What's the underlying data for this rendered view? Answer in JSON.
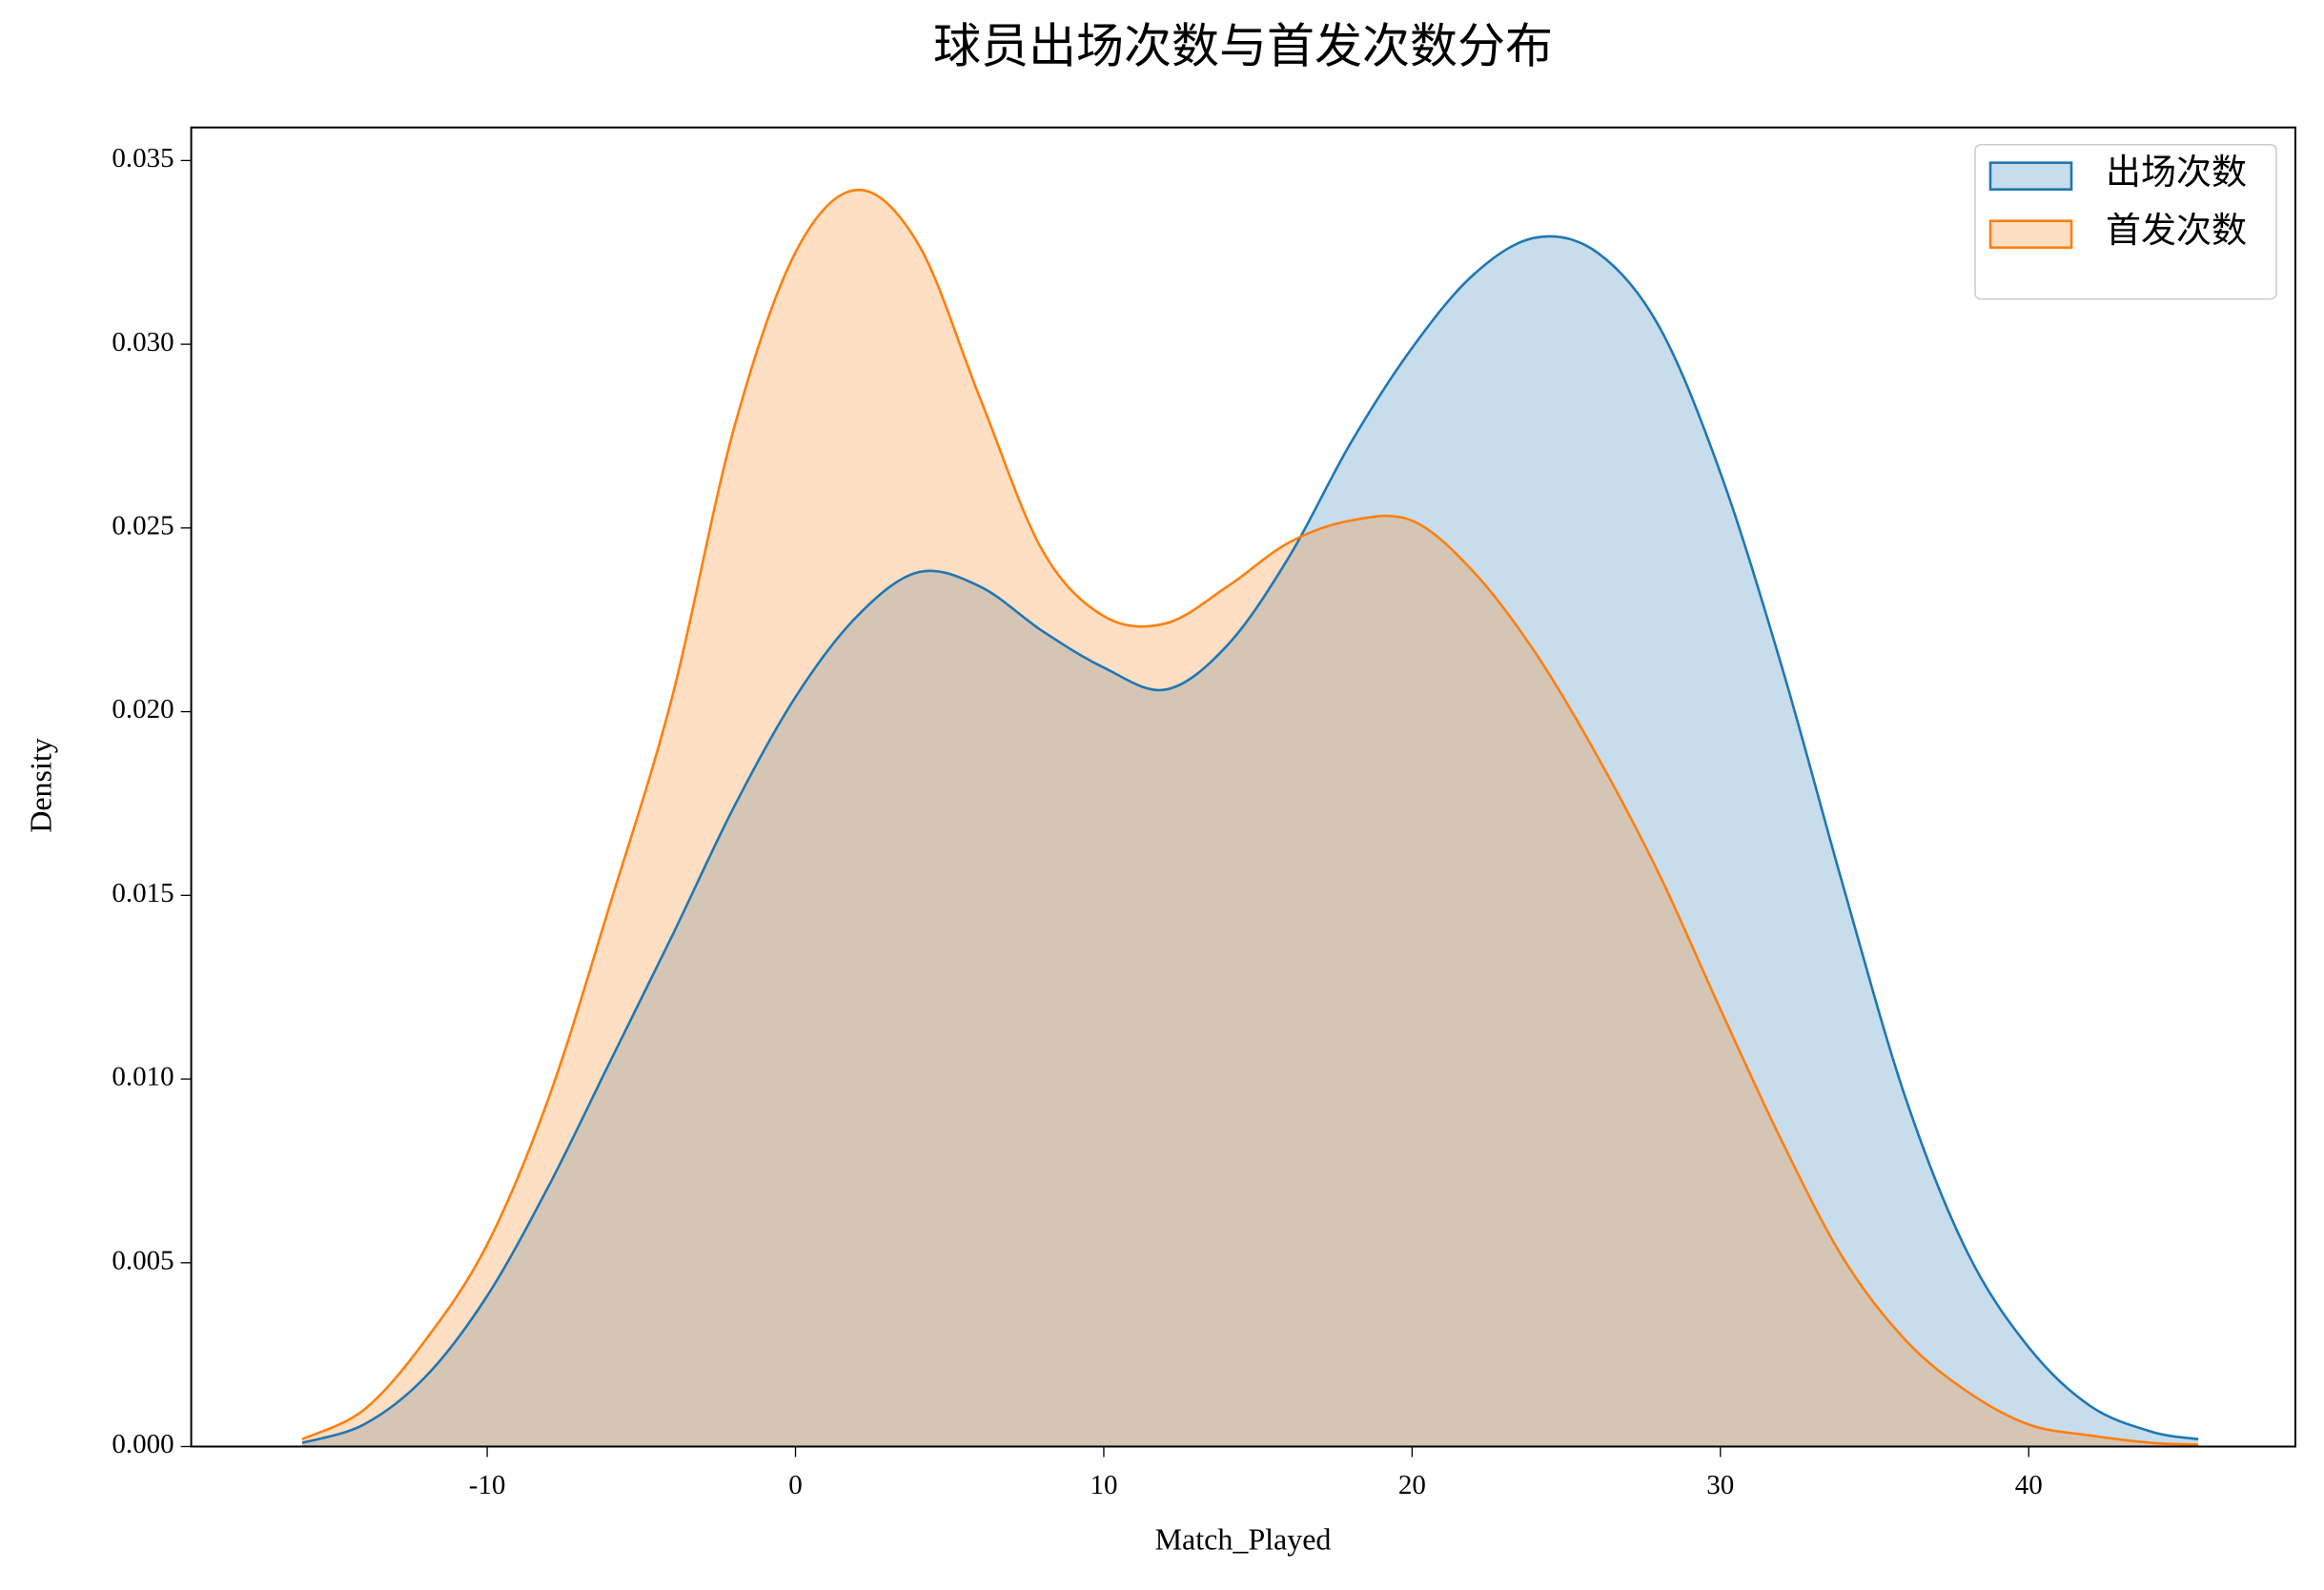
{
  "chart_data": {
    "type": "kde",
    "title": "球员出场次数与首发次数分布",
    "x_label": "Match_Played",
    "y_label": "Density",
    "x": [
      -16,
      -14,
      -12,
      -10,
      -8,
      -6,
      -4,
      -2,
      0,
      2,
      4,
      6,
      8,
      10,
      12,
      14,
      16,
      18,
      20,
      22,
      24,
      26,
      28,
      30,
      32,
      34,
      36,
      38,
      40,
      42,
      44,
      45.5
    ],
    "series": [
      {
        "name": "出场次数",
        "color": "#1f77b4",
        "values": [
          0.0001,
          0.0006,
          0.0019,
          0.0041,
          0.0071,
          0.0105,
          0.0139,
          0.0174,
          0.0204,
          0.0226,
          0.0238,
          0.0234,
          0.0222,
          0.0212,
          0.0206,
          0.0218,
          0.0242,
          0.0273,
          0.0299,
          0.0319,
          0.0329,
          0.0325,
          0.0305,
          0.0265,
          0.0212,
          0.0152,
          0.0095,
          0.0053,
          0.0027,
          0.0011,
          0.0004,
          0.0002
        ]
      },
      {
        "name": "首发次数",
        "color": "#ff7f0e",
        "values": [
          0.0002,
          0.001,
          0.0029,
          0.0055,
          0.0095,
          0.0148,
          0.0204,
          0.0277,
          0.0325,
          0.0342,
          0.0327,
          0.0285,
          0.0244,
          0.0226,
          0.0224,
          0.0234,
          0.0246,
          0.0252,
          0.0252,
          0.0238,
          0.0216,
          0.0188,
          0.0156,
          0.0119,
          0.0083,
          0.0051,
          0.0029,
          0.0015,
          0.0006,
          0.0003,
          0.0001,
          5e-05
        ]
      }
    ],
    "xlim": [
      -19.6,
      48.65
    ],
    "ylim": [
      0,
      0.0359
    ],
    "xticks": [
      -10,
      0,
      10,
      20,
      30,
      40
    ],
    "yticks": [
      {
        "value": 0,
        "label": "0.000"
      },
      {
        "value": 0.005,
        "label": "0.005"
      },
      {
        "value": 0.01,
        "label": "0.010"
      },
      {
        "value": 0.015,
        "label": "0.015"
      },
      {
        "value": 0.02,
        "label": "0.020"
      },
      {
        "value": 0.025,
        "label": "0.025"
      },
      {
        "value": 0.03,
        "label": "0.030"
      },
      {
        "value": 0.035,
        "label": "0.035"
      }
    ],
    "legend": "upper right",
    "fill_alpha": 0.25
  }
}
